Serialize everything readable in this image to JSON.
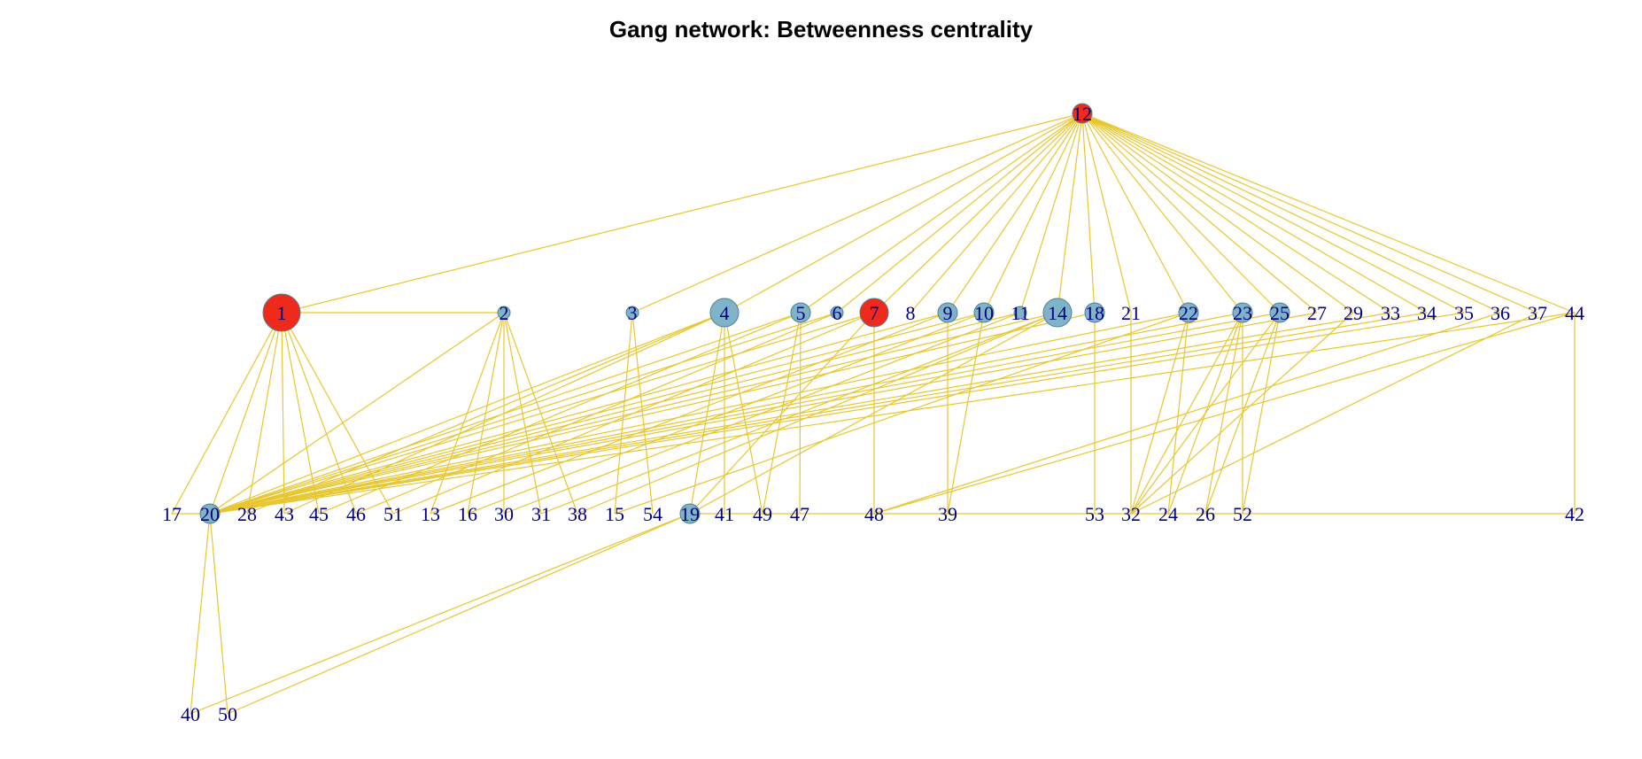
{
  "title": "Gang network: Betweenness centrality",
  "colors": {
    "edge": "#e8c62f",
    "node_high": "#ef2a1a",
    "node_mid": "#7fb3c8",
    "node_stroke": "#4f7f90",
    "label": "#000080"
  },
  "nodes": [
    {
      "id": "12",
      "level": "high",
      "size": "small"
    },
    {
      "id": "1",
      "level": "high",
      "size": "large"
    },
    {
      "id": "2",
      "level": "mid",
      "size": "tiny"
    },
    {
      "id": "3",
      "level": "mid",
      "size": "tiny"
    },
    {
      "id": "4",
      "level": "mid",
      "size": "medium"
    },
    {
      "id": "5",
      "level": "mid",
      "size": "small"
    },
    {
      "id": "6",
      "level": "mid",
      "size": "tiny"
    },
    {
      "id": "7",
      "level": "high",
      "size": "medium"
    },
    {
      "id": "8",
      "level": "none",
      "size": "none"
    },
    {
      "id": "9",
      "level": "mid",
      "size": "small"
    },
    {
      "id": "10",
      "level": "mid",
      "size": "small"
    },
    {
      "id": "11",
      "level": "mid",
      "size": "tiny"
    },
    {
      "id": "14",
      "level": "mid",
      "size": "medium"
    },
    {
      "id": "18",
      "level": "mid",
      "size": "small"
    },
    {
      "id": "21",
      "level": "none",
      "size": "none"
    },
    {
      "id": "22",
      "level": "mid",
      "size": "small"
    },
    {
      "id": "23",
      "level": "mid",
      "size": "small"
    },
    {
      "id": "25",
      "level": "mid",
      "size": "small"
    },
    {
      "id": "27",
      "level": "none",
      "size": "none"
    },
    {
      "id": "29",
      "level": "none",
      "size": "none"
    },
    {
      "id": "33",
      "level": "none",
      "size": "none"
    },
    {
      "id": "34",
      "level": "none",
      "size": "none"
    },
    {
      "id": "35",
      "level": "none",
      "size": "none"
    },
    {
      "id": "36",
      "level": "none",
      "size": "none"
    },
    {
      "id": "37",
      "level": "none",
      "size": "none"
    },
    {
      "id": "44",
      "level": "none",
      "size": "none"
    },
    {
      "id": "17",
      "level": "none",
      "size": "none"
    },
    {
      "id": "20",
      "level": "mid",
      "size": "small"
    },
    {
      "id": "28",
      "level": "none",
      "size": "none"
    },
    {
      "id": "43",
      "level": "none",
      "size": "none"
    },
    {
      "id": "45",
      "level": "none",
      "size": "none"
    },
    {
      "id": "46",
      "level": "none",
      "size": "none"
    },
    {
      "id": "51",
      "level": "none",
      "size": "none"
    },
    {
      "id": "13",
      "level": "none",
      "size": "none"
    },
    {
      "id": "16",
      "level": "none",
      "size": "none"
    },
    {
      "id": "30",
      "level": "none",
      "size": "none"
    },
    {
      "id": "31",
      "level": "none",
      "size": "none"
    },
    {
      "id": "38",
      "level": "none",
      "size": "none"
    },
    {
      "id": "15",
      "level": "none",
      "size": "none"
    },
    {
      "id": "54",
      "level": "none",
      "size": "none"
    },
    {
      "id": "19",
      "level": "mid",
      "size": "small"
    },
    {
      "id": "41",
      "level": "none",
      "size": "none"
    },
    {
      "id": "49",
      "level": "none",
      "size": "none"
    },
    {
      "id": "47",
      "level": "none",
      "size": "none"
    },
    {
      "id": "48",
      "level": "none",
      "size": "none"
    },
    {
      "id": "39",
      "level": "none",
      "size": "none"
    },
    {
      "id": "53",
      "level": "none",
      "size": "none"
    },
    {
      "id": "32",
      "level": "none",
      "size": "none"
    },
    {
      "id": "24",
      "level": "none",
      "size": "none"
    },
    {
      "id": "26",
      "level": "none",
      "size": "none"
    },
    {
      "id": "52",
      "level": "none",
      "size": "none"
    },
    {
      "id": "42",
      "level": "none",
      "size": "none"
    },
    {
      "id": "40",
      "level": "none",
      "size": "none"
    },
    {
      "id": "50",
      "level": "none",
      "size": "none"
    }
  ],
  "edges": [
    [
      "12",
      "1"
    ],
    [
      "12",
      "3"
    ],
    [
      "12",
      "4"
    ],
    [
      "12",
      "5"
    ],
    [
      "12",
      "6"
    ],
    [
      "12",
      "7"
    ],
    [
      "12",
      "8"
    ],
    [
      "12",
      "9"
    ],
    [
      "12",
      "10"
    ],
    [
      "12",
      "11"
    ],
    [
      "12",
      "14"
    ],
    [
      "12",
      "18"
    ],
    [
      "12",
      "21"
    ],
    [
      "12",
      "22"
    ],
    [
      "12",
      "23"
    ],
    [
      "12",
      "25"
    ],
    [
      "12",
      "27"
    ],
    [
      "12",
      "29"
    ],
    [
      "12",
      "33"
    ],
    [
      "12",
      "34"
    ],
    [
      "12",
      "35"
    ],
    [
      "12",
      "36"
    ],
    [
      "12",
      "37"
    ],
    [
      "12",
      "44"
    ],
    [
      "1",
      "2"
    ],
    [
      "1",
      "17"
    ],
    [
      "1",
      "20"
    ],
    [
      "1",
      "28"
    ],
    [
      "1",
      "43"
    ],
    [
      "1",
      "45"
    ],
    [
      "1",
      "46"
    ],
    [
      "1",
      "51"
    ],
    [
      "2",
      "13"
    ],
    [
      "2",
      "16"
    ],
    [
      "2",
      "30"
    ],
    [
      "2",
      "31"
    ],
    [
      "2",
      "38"
    ],
    [
      "2",
      "20"
    ],
    [
      "3",
      "15"
    ],
    [
      "3",
      "54"
    ],
    [
      "4",
      "19"
    ],
    [
      "4",
      "41"
    ],
    [
      "4",
      "49"
    ],
    [
      "4",
      "20"
    ],
    [
      "4",
      "28"
    ],
    [
      "4",
      "43"
    ],
    [
      "5",
      "47"
    ],
    [
      "5",
      "49"
    ],
    [
      "5",
      "20"
    ],
    [
      "5",
      "45"
    ],
    [
      "6",
      "20"
    ],
    [
      "6",
      "46"
    ],
    [
      "7",
      "48"
    ],
    [
      "7",
      "19"
    ],
    [
      "7",
      "20"
    ],
    [
      "7",
      "51"
    ],
    [
      "9",
      "39"
    ],
    [
      "9",
      "20"
    ],
    [
      "9",
      "13"
    ],
    [
      "10",
      "39"
    ],
    [
      "10",
      "20"
    ],
    [
      "10",
      "16"
    ],
    [
      "11",
      "20"
    ],
    [
      "11",
      "30"
    ],
    [
      "14",
      "20"
    ],
    [
      "14",
      "31"
    ],
    [
      "14",
      "38"
    ],
    [
      "14",
      "19"
    ],
    [
      "18",
      "53"
    ],
    [
      "18",
      "20"
    ],
    [
      "21",
      "32"
    ],
    [
      "22",
      "32"
    ],
    [
      "22",
      "24"
    ],
    [
      "22",
      "20"
    ],
    [
      "22",
      "15"
    ],
    [
      "23",
      "32"
    ],
    [
      "23",
      "24"
    ],
    [
      "23",
      "26"
    ],
    [
      "23",
      "52"
    ],
    [
      "23",
      "20"
    ],
    [
      "25",
      "32"
    ],
    [
      "25",
      "26"
    ],
    [
      "25",
      "52"
    ],
    [
      "25",
      "20"
    ],
    [
      "27",
      "20"
    ],
    [
      "29",
      "32"
    ],
    [
      "33",
      "20"
    ],
    [
      "34",
      "20"
    ],
    [
      "35",
      "20"
    ],
    [
      "36",
      "48"
    ],
    [
      "37",
      "32"
    ],
    [
      "44",
      "42"
    ],
    [
      "44",
      "20"
    ],
    [
      "44",
      "48"
    ],
    [
      "20",
      "40"
    ],
    [
      "20",
      "50"
    ],
    [
      "40",
      "19"
    ],
    [
      "50",
      "19"
    ],
    [
      "17",
      "20"
    ],
    [
      "19",
      "42"
    ]
  ]
}
